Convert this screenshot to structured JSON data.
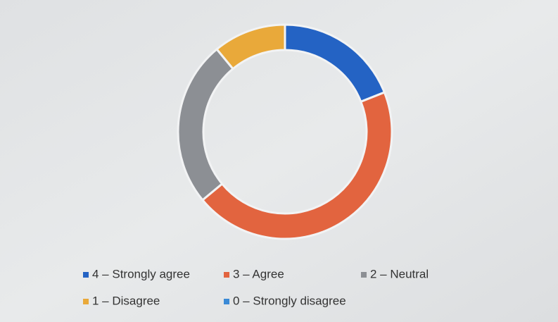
{
  "chart_data": {
    "type": "donut",
    "categories": [
      "4 – Strongly agree",
      "3 – Agree",
      "2 – Neutral",
      "1 – Disagree",
      "0 – Strongly disagree"
    ],
    "values": [
      19,
      45,
      25,
      11,
      0
    ],
    "colors": [
      "#2463c4",
      "#e2643f",
      "#8c8f94",
      "#e9a93a",
      "#3a8ad6"
    ],
    "legend": "bottom"
  }
}
